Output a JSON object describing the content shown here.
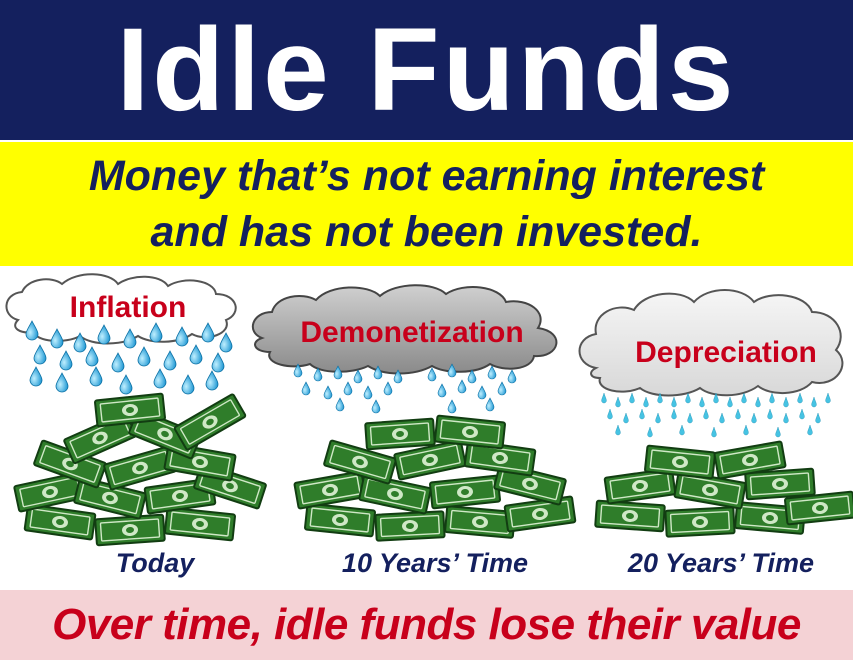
{
  "title": "Idle Funds",
  "subtitle": {
    "line1": "Money that’s not earning interest",
    "line2": "and has not been invested."
  },
  "panels": [
    {
      "cloud_label": "Inflation",
      "caption": "Today",
      "cloud_color": "#ffffff",
      "rain": "large-drops"
    },
    {
      "cloud_label": "Demonetization",
      "caption": "10 Years’ Time",
      "cloud_color": "#9b9b9b",
      "rain": "medium-drops"
    },
    {
      "cloud_label": "Depreciation",
      "caption": "20 Years’ Time",
      "cloud_color": "#e6e6e6",
      "rain": "drizzle"
    }
  ],
  "footer": "Over time, idle funds lose their value",
  "colors": {
    "navy": "#14205e",
    "yellow": "#ffff00",
    "red": "#c8001b",
    "footer_bg": "#f4d2d5",
    "money_green": "#2f7d2a",
    "raindrop": "#19a9e0"
  },
  "icons": [
    "cloud-icon",
    "raindrop-icon",
    "money-pile-icon"
  ]
}
